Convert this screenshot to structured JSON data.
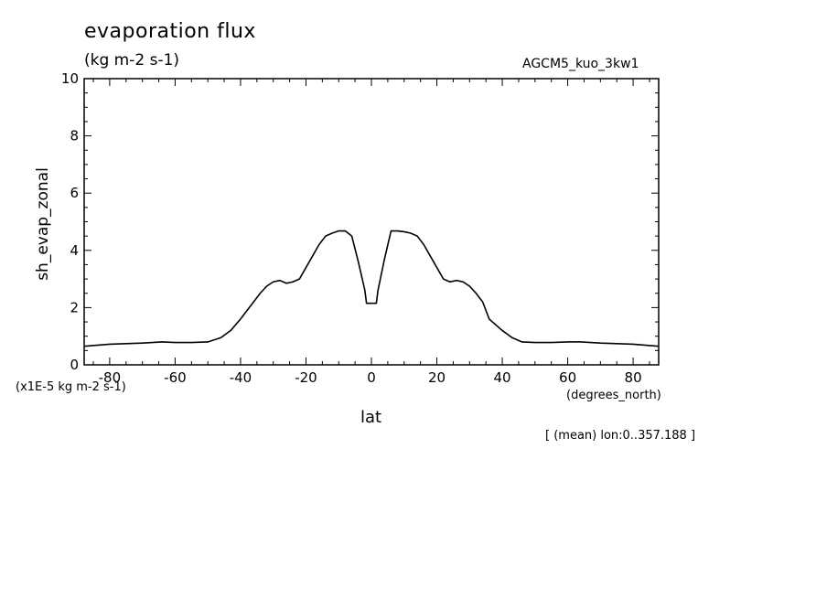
{
  "chart_data": {
    "type": "line",
    "title": "evaporation flux",
    "subtitle": "(kg m-2 s-1)",
    "run_label": "AGCM5_kuo_3kw1",
    "ylabel": "sh_evap_zonal",
    "xlabel": "lat",
    "y_scale_note": "(x1E-5 kg m-2 s-1)",
    "x_units": "(degrees_north)",
    "mean_note": "[ (mean) lon:0..357.188 ]",
    "xlim": [
      -87.8,
      87.8
    ],
    "ylim": [
      0,
      10
    ],
    "x_ticks": [
      -80,
      -60,
      -40,
      -20,
      0,
      20,
      40,
      60,
      80
    ],
    "x_tick_labels": [
      "-80",
      "-60",
      "-40",
      "-20",
      "0",
      "20",
      "40",
      "60",
      "80"
    ],
    "y_ticks": [
      0,
      2,
      4,
      6,
      8,
      10
    ],
    "y_tick_labels": [
      "0",
      "2",
      "4",
      "6",
      "8",
      "10"
    ],
    "grid": false,
    "series": [
      {
        "x": [
          -87.8,
          -80,
          -70,
          -64,
          -60,
          -55,
          -50,
          -46,
          -43,
          -40,
          -36,
          -34,
          -32,
          -30,
          -28,
          -26,
          -24,
          -22,
          -20,
          -18,
          -16,
          -14,
          -12,
          -10,
          -8,
          -6,
          -4,
          -2,
          -1.5,
          0,
          1.5,
          2,
          4,
          6,
          8,
          10,
          12,
          14,
          16,
          18,
          20,
          22,
          24,
          26,
          28,
          30,
          32,
          34,
          36,
          40,
          43,
          46,
          50,
          55,
          60,
          64,
          70,
          80,
          87.8
        ],
        "y": [
          0.65,
          0.72,
          0.76,
          0.8,
          0.78,
          0.78,
          0.8,
          0.95,
          1.2,
          1.6,
          2.2,
          2.5,
          2.75,
          2.9,
          2.95,
          2.85,
          2.9,
          3.0,
          3.4,
          3.8,
          4.2,
          4.5,
          4.6,
          4.68,
          4.68,
          4.5,
          3.6,
          2.6,
          2.15,
          2.15,
          2.15,
          2.6,
          3.7,
          4.68,
          4.68,
          4.65,
          4.6,
          4.5,
          4.2,
          3.8,
          3.4,
          3.0,
          2.9,
          2.95,
          2.9,
          2.75,
          2.5,
          2.2,
          1.6,
          1.2,
          0.95,
          0.8,
          0.78,
          0.78,
          0.8,
          0.8,
          0.76,
          0.72,
          0.65
        ]
      }
    ]
  }
}
